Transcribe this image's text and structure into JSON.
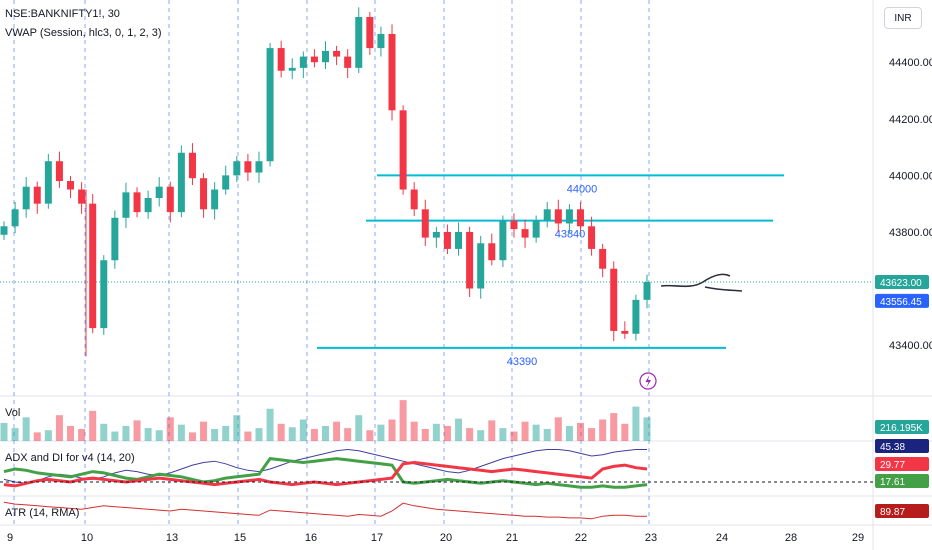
{
  "symbol": "NSE:BANKNIFTY1!, 30",
  "vwap_label": "VWAP (Session, hlc3, 0, 1, 2, 3)",
  "currency": "INR",
  "colors": {
    "up": "#26a69a",
    "down": "#f23645",
    "level": "#00bcd4",
    "grid": "#2962ff",
    "adx": "#3f3f9f",
    "di_plus": "#43a047",
    "di_minus": "#f23645",
    "atr": "#d32f2f"
  },
  "chart_data": [
    {
      "type": "candlestick",
      "x_ticks": [
        "9",
        "10",
        "13",
        "15",
        "16",
        "17",
        "20",
        "21",
        "22",
        "23",
        "24",
        "28",
        "29"
      ],
      "ylim": [
        43220,
        44620
      ],
      "y_ticks": [
        "44400.00",
        "44200.00",
        "44000.00",
        "43800.00",
        "43400.00"
      ],
      "last_price": "43623.00",
      "vwap_value": "43556.45",
      "price_levels": [
        {
          "label": "44000",
          "value": 44000
        },
        {
          "label": "43840",
          "value": 43840
        },
        {
          "label": "43390",
          "value": 43390
        }
      ],
      "close_path": [
        43820,
        43880,
        43960,
        43900,
        44050,
        43980,
        43950,
        43900,
        43460,
        43700,
        43850,
        43940,
        43870,
        43920,
        43960,
        43870,
        44080,
        43990,
        43880,
        43950,
        44000,
        44050,
        44010,
        44050,
        44450,
        44370,
        44380,
        44420,
        44400,
        44440,
        44420,
        44380,
        44560,
        44450,
        44500,
        44230,
        43950,
        43880,
        43780,
        43800,
        43740,
        43800,
        43600,
        43760,
        43700,
        43840,
        43810,
        43780,
        43840,
        43880,
        43830,
        43880,
        43820,
        43740,
        43670,
        43450,
        43440,
        43560,
        43623
      ]
    },
    {
      "type": "bar",
      "title": "Vol",
      "last_value": "216.195K",
      "series_values": [
        42,
        30,
        55,
        20,
        25,
        60,
        35,
        28,
        70,
        40,
        22,
        35,
        48,
        30,
        25,
        55,
        38,
        20,
        45,
        28,
        35,
        60,
        22,
        30,
        75,
        40,
        32,
        50,
        28,
        35,
        45,
        30,
        60,
        25,
        38,
        50,
        95,
        45,
        28,
        40,
        35,
        52,
        30,
        25,
        48,
        30,
        22,
        45,
        38,
        28,
        55,
        35,
        42,
        30,
        50,
        65,
        40,
        80,
        55
      ]
    },
    {
      "type": "line",
      "title": "ADX and DI for v4 (14, 20)",
      "values_shown": [
        "45.38",
        "29.77",
        "17.61"
      ],
      "series": [
        {
          "name": "ADX",
          "values": [
            22,
            20,
            19,
            21,
            24,
            26,
            25,
            23,
            22,
            24,
            27,
            29,
            28,
            26,
            25,
            27,
            30,
            33,
            35,
            36,
            34,
            31,
            29,
            28,
            30,
            33,
            36,
            38,
            40,
            42,
            44,
            45,
            44,
            42,
            40,
            38,
            36,
            34,
            32,
            30,
            28,
            27,
            29,
            32,
            35,
            38,
            40,
            42,
            44,
            45,
            45,
            44,
            42,
            40,
            41,
            43,
            44,
            45,
            45
          ]
        },
        {
          "name": "DI+",
          "values": [
            28,
            30,
            29,
            27,
            26,
            25,
            24,
            26,
            28,
            27,
            25,
            23,
            22,
            24,
            26,
            25,
            24,
            22,
            20,
            21,
            23,
            24,
            25,
            26,
            38,
            37,
            36,
            35,
            36,
            37,
            38,
            37,
            36,
            35,
            34,
            33,
            20,
            19,
            20,
            21,
            22,
            21,
            20,
            19,
            20,
            21,
            20,
            19,
            18,
            19,
            18,
            17,
            16,
            16,
            17,
            16,
            16,
            17,
            18
          ]
        },
        {
          "name": "DI-",
          "values": [
            18,
            17,
            19,
            21,
            22,
            21,
            20,
            22,
            23,
            22,
            21,
            20,
            21,
            22,
            23,
            22,
            21,
            20,
            19,
            18,
            19,
            20,
            21,
            22,
            20,
            19,
            18,
            19,
            20,
            19,
            18,
            19,
            20,
            21,
            22,
            23,
            34,
            35,
            34,
            33,
            32,
            31,
            30,
            29,
            28,
            29,
            30,
            29,
            28,
            27,
            26,
            25,
            24,
            23,
            30,
            32,
            33,
            31,
            30
          ]
        }
      ]
    },
    {
      "type": "line",
      "title": "ATR (14, RMA)",
      "last_value": "89.87",
      "series": [
        {
          "name": "ATR",
          "values": [
            105,
            103,
            102,
            101,
            100,
            99,
            98,
            97,
            99,
            101,
            100,
            99,
            98,
            97,
            96,
            95,
            97,
            96,
            95,
            94,
            93,
            92,
            91,
            90,
            96,
            95,
            94,
            93,
            92,
            91,
            90,
            89,
            91,
            90,
            89,
            95,
            104,
            101,
            99,
            97,
            96,
            95,
            94,
            93,
            92,
            91,
            90,
            89,
            89,
            88,
            88,
            87,
            87,
            86,
            89,
            90,
            90,
            89,
            89
          ]
        }
      ]
    }
  ]
}
